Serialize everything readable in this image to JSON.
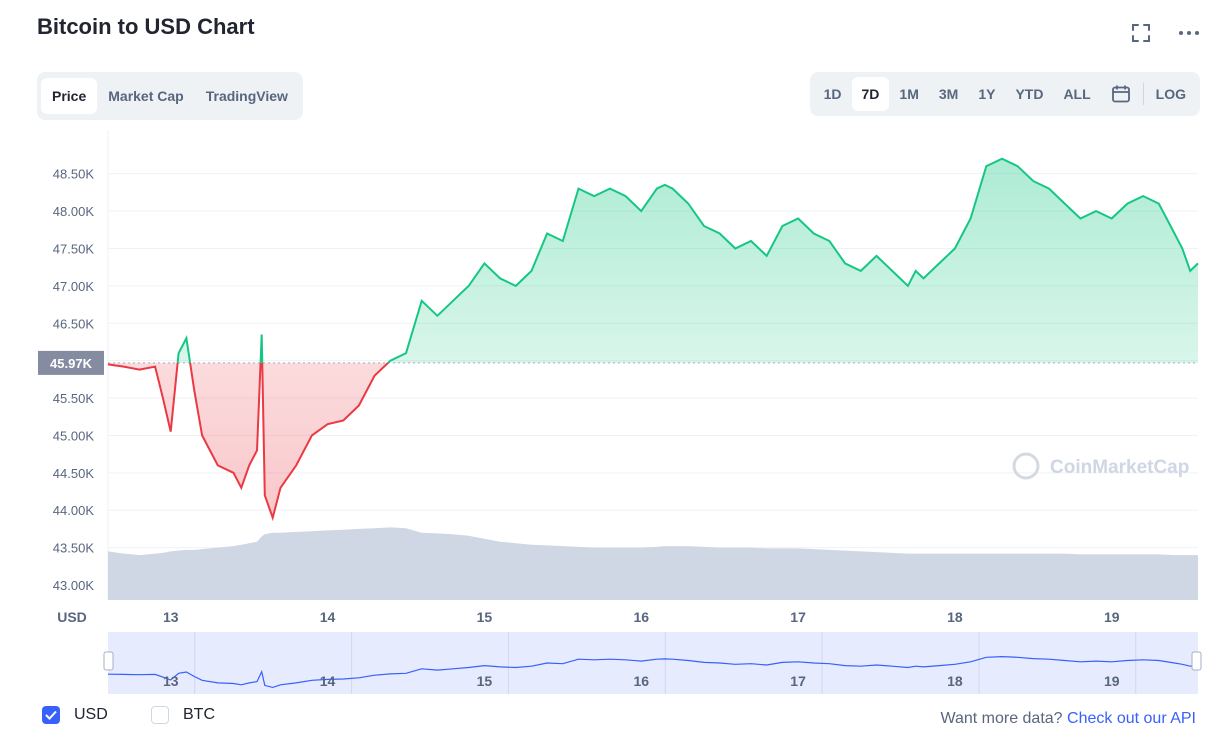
{
  "page": {
    "title": "Bitcoin to USD Chart",
    "fullscreen_icon": "expand-icon",
    "more_icon": "more-horizontal-icon"
  },
  "tabs": [
    {
      "label": "Price",
      "active": true
    },
    {
      "label": "Market Cap",
      "active": false
    },
    {
      "label": "TradingView",
      "active": false
    }
  ],
  "ranges": [
    {
      "label": "1D",
      "active": false
    },
    {
      "label": "7D",
      "active": true
    },
    {
      "label": "1M",
      "active": false
    },
    {
      "label": "3M",
      "active": false
    },
    {
      "label": "1Y",
      "active": false
    },
    {
      "label": "YTD",
      "active": false
    },
    {
      "label": "ALL",
      "active": false
    }
  ],
  "calendar_icon": "calendar-icon",
  "log_label": "LOG",
  "chart_data": {
    "type": "area",
    "x_unit": "day of month (days 12.6 to 19.55)",
    "y_ticks": [
      "43.00K",
      "43.50K",
      "44.00K",
      "44.50K",
      "45.00K",
      "45.50K",
      "46.00K",
      "46.50K",
      "47.00K",
      "47.50K",
      "48.00K",
      "48.50K"
    ],
    "y_tick_values": [
      43000,
      43500,
      44000,
      44500,
      45000,
      45500,
      46000,
      46500,
      47000,
      47500,
      48000,
      48500
    ],
    "ylim": [
      42800,
      48950
    ],
    "xlim": [
      12.6,
      19.55
    ],
    "x_ticks": [
      "13",
      "14",
      "15",
      "16",
      "17",
      "18",
      "19"
    ],
    "x_tick_values": [
      13,
      14,
      15,
      16,
      17,
      18,
      19
    ],
    "x_axis_label": "USD",
    "baseline_label": "45.97K",
    "baseline_value": 45970,
    "colors": {
      "up": "#16c784",
      "down": "#ea3943",
      "volume": "#cfd6e4",
      "navigator": "#e6ebfe",
      "navigator_line": "#3861fb"
    },
    "series": [
      {
        "x": [
          12.6,
          12.7,
          12.8,
          12.9,
          12.95,
          13.0,
          13.05,
          13.1,
          13.15,
          13.2,
          13.3,
          13.4,
          13.45,
          13.5,
          13.55,
          13.58,
          13.6,
          13.65,
          13.7,
          13.8,
          13.9,
          14.0,
          14.1,
          14.2,
          14.3,
          14.4,
          14.5,
          14.6,
          14.7,
          14.8,
          14.9,
          15.0,
          15.1,
          15.2,
          15.3,
          15.4,
          15.5,
          15.6,
          15.7,
          15.8,
          15.9,
          16.0,
          16.1,
          16.15,
          16.2,
          16.3,
          16.4,
          16.5,
          16.6,
          16.7,
          16.8,
          16.9,
          17.0,
          17.1,
          17.2,
          17.3,
          17.4,
          17.5,
          17.6,
          17.7,
          17.75,
          17.8,
          17.9,
          18.0,
          18.1,
          18.2,
          18.3,
          18.4,
          18.5,
          18.6,
          18.7,
          18.8,
          18.9,
          19.0,
          19.1,
          19.2,
          19.3,
          19.4,
          19.45,
          19.5,
          19.55
        ],
        "y": [
          45950,
          45920,
          45880,
          45920,
          45500,
          45050,
          46100,
          46300,
          45600,
          45000,
          44600,
          44500,
          44300,
          44600,
          44800,
          46350,
          44200,
          43900,
          44300,
          44600,
          45000,
          45150,
          45200,
          45400,
          45800,
          46000,
          46100,
          46800,
          46600,
          46800,
          47000,
          47300,
          47100,
          47000,
          47200,
          47700,
          47600,
          48300,
          48200,
          48300,
          48200,
          48000,
          48300,
          48350,
          48300,
          48100,
          47800,
          47700,
          47500,
          47600,
          47400,
          47800,
          47900,
          47700,
          47600,
          47300,
          47200,
          47400,
          47200,
          47000,
          47200,
          47100,
          47300,
          47500,
          47900,
          48600,
          48700,
          48600,
          48400,
          48300,
          48100,
          47900,
          48000,
          47900,
          48100,
          48200,
          48100,
          47700,
          47500,
          47200,
          47300
        ],
        "volume": [
          43450,
          43420,
          43400,
          43420,
          43430,
          43450,
          43460,
          43470,
          43470,
          43480,
          43500,
          43520,
          43540,
          43560,
          43580,
          43650,
          43680,
          43700,
          43700,
          43710,
          43720,
          43730,
          43740,
          43750,
          43760,
          43770,
          43760,
          43700,
          43690,
          43680,
          43660,
          43620,
          43580,
          43560,
          43540,
          43530,
          43520,
          43510,
          43500,
          43500,
          43500,
          43500,
          43510,
          43520,
          43520,
          43520,
          43510,
          43500,
          43500,
          43500,
          43490,
          43490,
          43490,
          43480,
          43470,
          43460,
          43450,
          43440,
          43430,
          43420,
          43420,
          43420,
          43420,
          43420,
          43420,
          43420,
          43420,
          43420,
          43420,
          43420,
          43420,
          43410,
          43410,
          43410,
          43410,
          43410,
          43410,
          43400,
          43400,
          43400,
          43400
        ]
      }
    ]
  },
  "watermark": "CoinMarketCap",
  "footer": {
    "usd_label": "USD",
    "btc_label": "BTC",
    "more_text": "Want more data?",
    "api_link": "Check out our API"
  }
}
